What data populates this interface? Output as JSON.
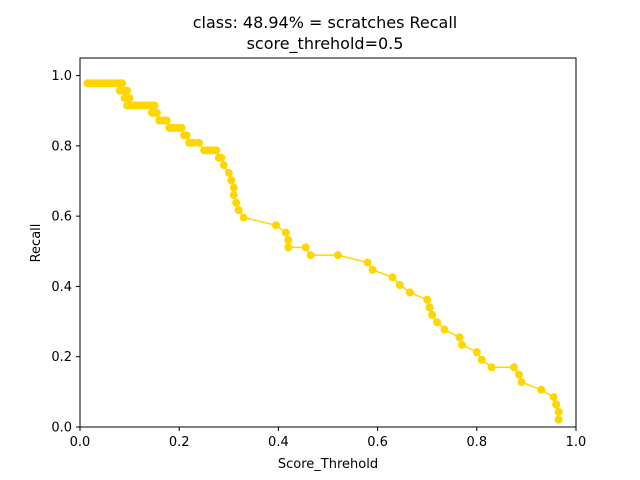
{
  "chart_data": {
    "type": "line",
    "title_line1": "class: 48.94% = scratches Recall",
    "title_line2": "score_threhold=0.5",
    "xlabel": "Score_Threhold",
    "ylabel": "Recall",
    "xlim": [
      0.0,
      1.0
    ],
    "ylim": [
      0.0,
      1.05
    ],
    "xticks": [
      0.0,
      0.2,
      0.4,
      0.6,
      0.8,
      1.0
    ],
    "xtick_labels": [
      "0.0",
      "0.2",
      "0.4",
      "0.6",
      "0.8",
      "1.0"
    ],
    "yticks": [
      0.0,
      0.2,
      0.4,
      0.6,
      0.8,
      1.0
    ],
    "ytick_labels": [
      "0.0",
      "0.2",
      "0.4",
      "0.6",
      "0.8",
      "1.0"
    ],
    "grid": false,
    "legend": "none",
    "series": [
      {
        "color": "#ffd700",
        "marker": "circle",
        "x": [
          0.015,
          0.02,
          0.025,
          0.03,
          0.035,
          0.04,
          0.045,
          0.05,
          0.055,
          0.06,
          0.065,
          0.07,
          0.075,
          0.08,
          0.085,
          0.08,
          0.09,
          0.095,
          0.09,
          0.095,
          0.1,
          0.095,
          0.1,
          0.105,
          0.11,
          0.115,
          0.12,
          0.125,
          0.13,
          0.135,
          0.14,
          0.145,
          0.15,
          0.145,
          0.15,
          0.155,
          0.16,
          0.165,
          0.17,
          0.175,
          0.18,
          0.185,
          0.19,
          0.195,
          0.2,
          0.205,
          0.21,
          0.215,
          0.22,
          0.225,
          0.23,
          0.24,
          0.25,
          0.255,
          0.26,
          0.265,
          0.27,
          0.275,
          0.28,
          0.285,
          0.29,
          0.3,
          0.305,
          0.31,
          0.31,
          0.315,
          0.32,
          0.32,
          0.33,
          0.395,
          0.415,
          0.42,
          0.42,
          0.455,
          0.465,
          0.52,
          0.58,
          0.59,
          0.63,
          0.645,
          0.665,
          0.7,
          0.705,
          0.705,
          0.71,
          0.72,
          0.735,
          0.765,
          0.77,
          0.8,
          0.81,
          0.83,
          0.875,
          0.885,
          0.89,
          0.93,
          0.955,
          0.96,
          0.96,
          0.965,
          0.965
        ],
        "y": [
          0.978,
          0.978,
          0.978,
          0.978,
          0.978,
          0.978,
          0.978,
          0.978,
          0.978,
          0.978,
          0.978,
          0.978,
          0.978,
          0.978,
          0.978,
          0.957,
          0.957,
          0.957,
          0.936,
          0.936,
          0.936,
          0.915,
          0.915,
          0.915,
          0.915,
          0.915,
          0.915,
          0.915,
          0.915,
          0.915,
          0.915,
          0.915,
          0.915,
          0.894,
          0.894,
          0.894,
          0.872,
          0.872,
          0.872,
          0.872,
          0.851,
          0.851,
          0.851,
          0.851,
          0.851,
          0.851,
          0.83,
          0.83,
          0.809,
          0.809,
          0.809,
          0.809,
          0.787,
          0.787,
          0.787,
          0.787,
          0.787,
          0.787,
          0.766,
          0.766,
          0.745,
          0.723,
          0.702,
          0.681,
          0.66,
          0.638,
          0.617,
          0.617,
          0.596,
          0.574,
          0.553,
          0.532,
          0.511,
          0.511,
          0.489,
          0.489,
          0.468,
          0.447,
          0.426,
          0.404,
          0.383,
          0.362,
          0.34,
          0.34,
          0.319,
          0.298,
          0.277,
          0.255,
          0.234,
          0.213,
          0.191,
          0.17,
          0.17,
          0.149,
          0.128,
          0.106,
          0.085,
          0.064,
          0.064,
          0.043,
          0.021
        ]
      }
    ]
  }
}
